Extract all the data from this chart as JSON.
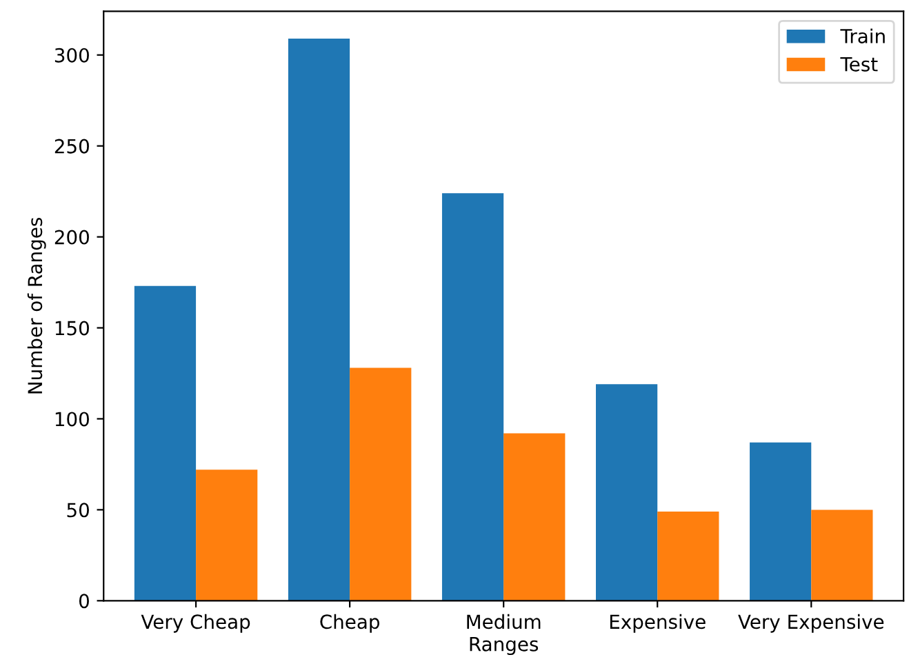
{
  "chart_data": {
    "type": "bar",
    "xlabel": "Ranges",
    "ylabel": "Number of Ranges",
    "categories": [
      "Very Cheap",
      "Cheap",
      "Medium",
      "Expensive",
      "Very Expensive"
    ],
    "series": [
      {
        "name": "Train",
        "color": "#1f77b4",
        "values": [
          173,
          309,
          224,
          119,
          87
        ]
      },
      {
        "name": "Test",
        "color": "#ff7f0e",
        "values": [
          72,
          128,
          92,
          49,
          50
        ]
      }
    ],
    "ylim": [
      0,
      324
    ],
    "yticks": [
      0,
      50,
      100,
      150,
      200,
      250,
      300
    ],
    "legend": "top right",
    "grid": false
  }
}
